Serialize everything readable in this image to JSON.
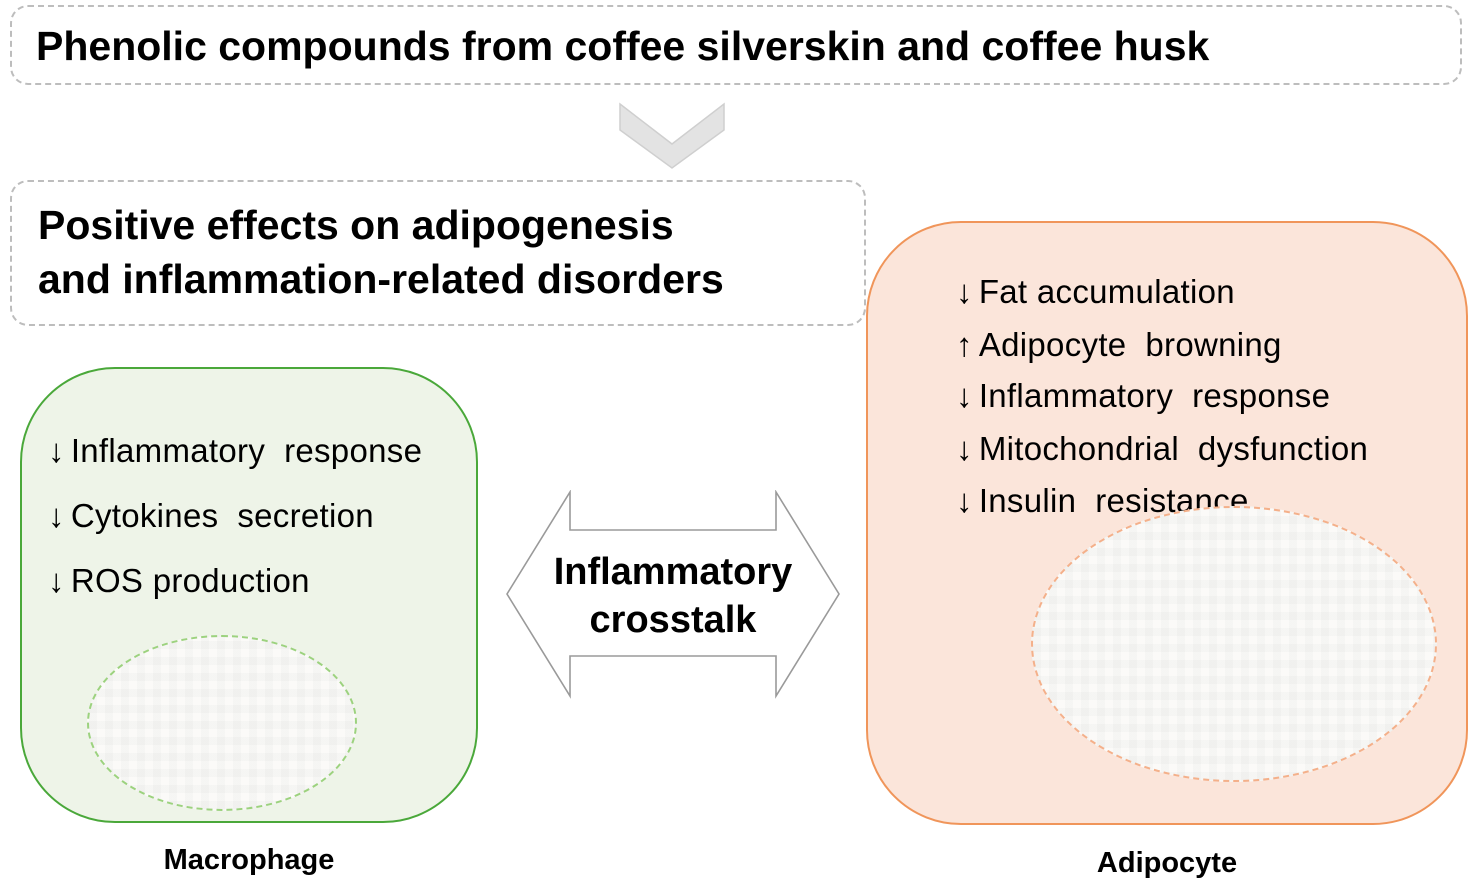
{
  "title": "Phenolic compounds from coffee silverskin and coffee husk",
  "effects_box": {
    "line1": "Positive effects on adipogenesis",
    "line2": "and inflammation-related disorders"
  },
  "macrophage": {
    "label": "Macrophage",
    "effects": [
      {
        "dir": "↓",
        "text": "Inflammatory  response"
      },
      {
        "dir": "↓",
        "text": "Cytokines  secretion"
      },
      {
        "dir": "↓",
        "text": "ROS production"
      }
    ]
  },
  "adipocyte": {
    "label": "Adipocyte",
    "effects": [
      {
        "dir": "↓",
        "text": "Fat accumulation"
      },
      {
        "dir": "↑",
        "text": "Adipocyte  browning"
      },
      {
        "dir": "↓",
        "text": "Inflammatory  response"
      },
      {
        "dir": "↓",
        "text": "Mitochondrial  dysfunction"
      },
      {
        "dir": "↓",
        "text": "Insulin  resistance"
      }
    ]
  },
  "crosstalk": {
    "line1": "Inflammatory",
    "line2": "crosstalk"
  },
  "colors": {
    "macrophage_border": "#4aa83a",
    "macrophage_fill": "#eef4e8",
    "adipocyte_border": "#f0955a",
    "adipocyte_fill": "#fbe5da",
    "arrow_gray": "#d9d9d9"
  }
}
